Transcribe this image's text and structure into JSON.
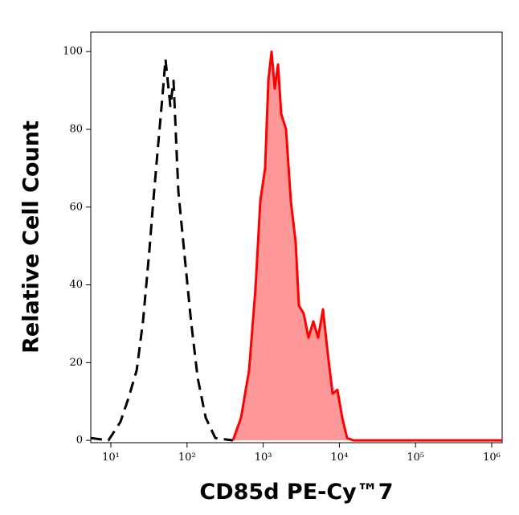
{
  "chart_data": {
    "type": "histogram-overlay",
    "xlabel": "CD85d PE-Cy™7",
    "ylabel": "Relative Cell Count",
    "xscale": "log",
    "xlim": [
      5.45,
      1370000
    ],
    "ylim": [
      -0.6,
      105
    ],
    "xticks": [
      {
        "value": 10,
        "label": "10¹"
      },
      {
        "value": 100,
        "label": "10²"
      },
      {
        "value": 1000,
        "label": "10³"
      },
      {
        "value": 10000,
        "label": "10⁴"
      },
      {
        "value": 100000,
        "label": "10⁵"
      },
      {
        "value": 1000000,
        "label": "10⁶"
      }
    ],
    "yticks": [
      0,
      20,
      40,
      60,
      80,
      100
    ],
    "series": [
      {
        "color": "#000000",
        "dashed": true,
        "filled": false,
        "x": [
          5.45,
          9.3,
          13.4,
          17.1,
          21.8,
          26.4,
          32.1,
          35.4,
          40.9,
          47.3,
          52.1,
          60.4,
          66.5,
          76.9,
          93.4,
          113,
          138,
          176,
          235,
          401
        ],
        "values": [
          0.6,
          0,
          4.8,
          11,
          18,
          30.6,
          49,
          59.5,
          74,
          88,
          98,
          86,
          92.5,
          64,
          47,
          30.6,
          16,
          5.8,
          0.6,
          0
        ]
      },
      {
        "color": "#ff0000",
        "fill": "#ff9999",
        "dashed": false,
        "filled": true,
        "x": [
          401,
          512,
          652,
          792,
          916,
          1060,
          1169,
          1288,
          1420,
          1565,
          1723,
          1994,
          2307,
          2668,
          2939,
          3401,
          3935,
          4551,
          5266,
          6092,
          7047,
          8152,
          9430,
          10910,
          12620,
          15340,
          1370000
        ],
        "values": [
          0,
          5.8,
          18,
          39,
          61.6,
          70,
          92.5,
          100,
          90.5,
          96.7,
          84,
          80,
          61.6,
          51,
          34.7,
          32.6,
          26.4,
          30.6,
          26.4,
          33.7,
          22.3,
          12,
          13,
          5.8,
          0.6,
          0,
          0
        ]
      }
    ]
  }
}
